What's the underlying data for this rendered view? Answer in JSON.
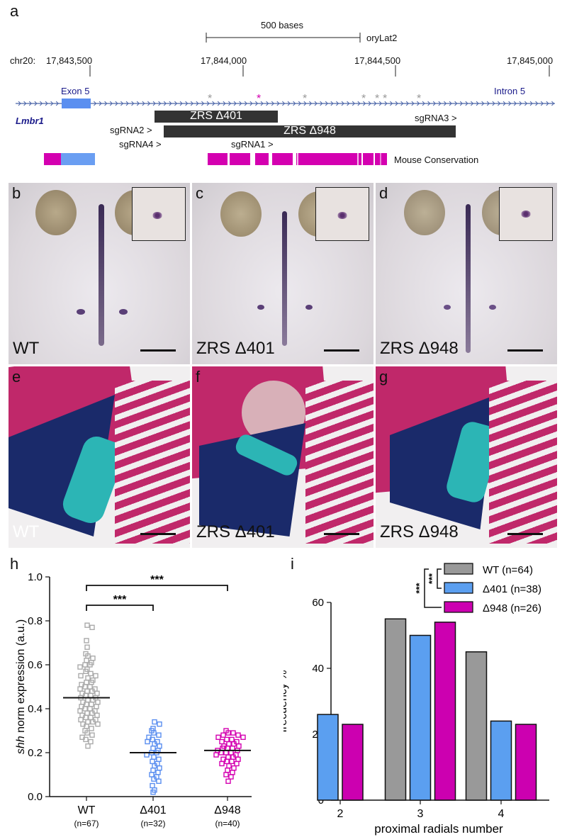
{
  "panels": {
    "a": "a",
    "b": "b",
    "c": "c",
    "d": "d",
    "e": "e",
    "f": "f",
    "g": "g",
    "h": "h",
    "i": "i"
  },
  "genome": {
    "scale_label": "500 bases",
    "assembly": "oryLat2",
    "chrom_label": "chr20:",
    "ticks": [
      "17,843,500",
      "17,844,000",
      "17,844,500",
      "17,845,000"
    ],
    "exon_label": "Exon 5",
    "intron_label": "Intron 5",
    "gene": "Lmbr1",
    "del401": "ZRS Δ401",
    "del948": "ZRS Δ948",
    "sgRNA1": "sgRNA1 >",
    "sgRNA2": "sgRNA2 >",
    "sgRNA3": "sgRNA3 >",
    "sgRNA4": "sgRNA4 >",
    "conservation": "Mouse Conservation",
    "colors": {
      "exon": "#5b8ff0",
      "conservation": "#d400b0",
      "deletion": "#333333",
      "pink_star": "#d400b0",
      "gray_star": "#999999"
    }
  },
  "photos": {
    "b": "WT",
    "c": "ZRS Δ401",
    "d": "ZRS Δ948",
    "e": "WT",
    "f": "ZRS Δ401",
    "g": "ZRS Δ948"
  },
  "chart_data": [
    {
      "type": "scatter",
      "panel": "h",
      "ylabel_italic": "shh",
      "ylabel_rest": " norm expression (a.u.)",
      "ylim": [
        0,
        1.0
      ],
      "yticks": [
        "0.0",
        "0.2",
        "0.4",
        "0.6",
        "0.8",
        "1.0"
      ],
      "categories": [
        "WT",
        "Δ401",
        "Δ948"
      ],
      "counts": [
        "(n=67)",
        "(n=32)",
        "(n=40)"
      ],
      "means": [
        0.45,
        0.2,
        0.21
      ],
      "colors": [
        "#aaaaaa",
        "#5b8ff0",
        "#d400b0"
      ],
      "significance": [
        "***",
        "***"
      ],
      "series": [
        {
          "name": "WT",
          "values": [
            0.78,
            0.77,
            0.71,
            0.68,
            0.65,
            0.64,
            0.63,
            0.62,
            0.61,
            0.6,
            0.6,
            0.59,
            0.58,
            0.57,
            0.56,
            0.55,
            0.55,
            0.54,
            0.53,
            0.52,
            0.52,
            0.51,
            0.5,
            0.5,
            0.49,
            0.49,
            0.48,
            0.48,
            0.47,
            0.47,
            0.46,
            0.46,
            0.45,
            0.45,
            0.44,
            0.44,
            0.43,
            0.43,
            0.42,
            0.42,
            0.41,
            0.41,
            0.4,
            0.4,
            0.39,
            0.39,
            0.38,
            0.38,
            0.37,
            0.37,
            0.36,
            0.36,
            0.35,
            0.35,
            0.34,
            0.34,
            0.33,
            0.33,
            0.32,
            0.31,
            0.3,
            0.29,
            0.28,
            0.27,
            0.26,
            0.25,
            0.23
          ]
        },
        {
          "name": "Δ401",
          "values": [
            0.34,
            0.33,
            0.31,
            0.3,
            0.29,
            0.28,
            0.27,
            0.26,
            0.25,
            0.25,
            0.24,
            0.23,
            0.22,
            0.21,
            0.2,
            0.2,
            0.19,
            0.18,
            0.17,
            0.16,
            0.15,
            0.14,
            0.13,
            0.12,
            0.11,
            0.1,
            0.09,
            0.08,
            0.07,
            0.05,
            0.03,
            0.02
          ]
        },
        {
          "name": "Δ948",
          "values": [
            0.3,
            0.29,
            0.29,
            0.28,
            0.28,
            0.27,
            0.27,
            0.26,
            0.26,
            0.25,
            0.25,
            0.24,
            0.24,
            0.23,
            0.23,
            0.22,
            0.22,
            0.22,
            0.21,
            0.21,
            0.2,
            0.2,
            0.2,
            0.19,
            0.19,
            0.18,
            0.18,
            0.17,
            0.17,
            0.16,
            0.16,
            0.15,
            0.15,
            0.14,
            0.13,
            0.12,
            0.11,
            0.1,
            0.09,
            0.07
          ]
        }
      ]
    },
    {
      "type": "bar",
      "panel": "i",
      "xlabel": "proximal radials number",
      "ylabel": "frecuency %",
      "ylim": [
        0,
        60
      ],
      "yticks": [
        "0",
        "20",
        "40",
        "60"
      ],
      "categories": [
        "2",
        "3",
        "4"
      ],
      "series": [
        {
          "name": "WT (n=64)",
          "color": "#999999",
          "values": [
            0,
            55,
            45
          ]
        },
        {
          "name": "Δ401 (n=38)",
          "color": "#5b9ff0",
          "values": [
            26,
            50,
            24
          ]
        },
        {
          "name": "Δ948 (n=26)",
          "color": "#cc00b0",
          "values": [
            23,
            54,
            23
          ]
        }
      ],
      "significance": [
        "***",
        "***"
      ]
    }
  ]
}
